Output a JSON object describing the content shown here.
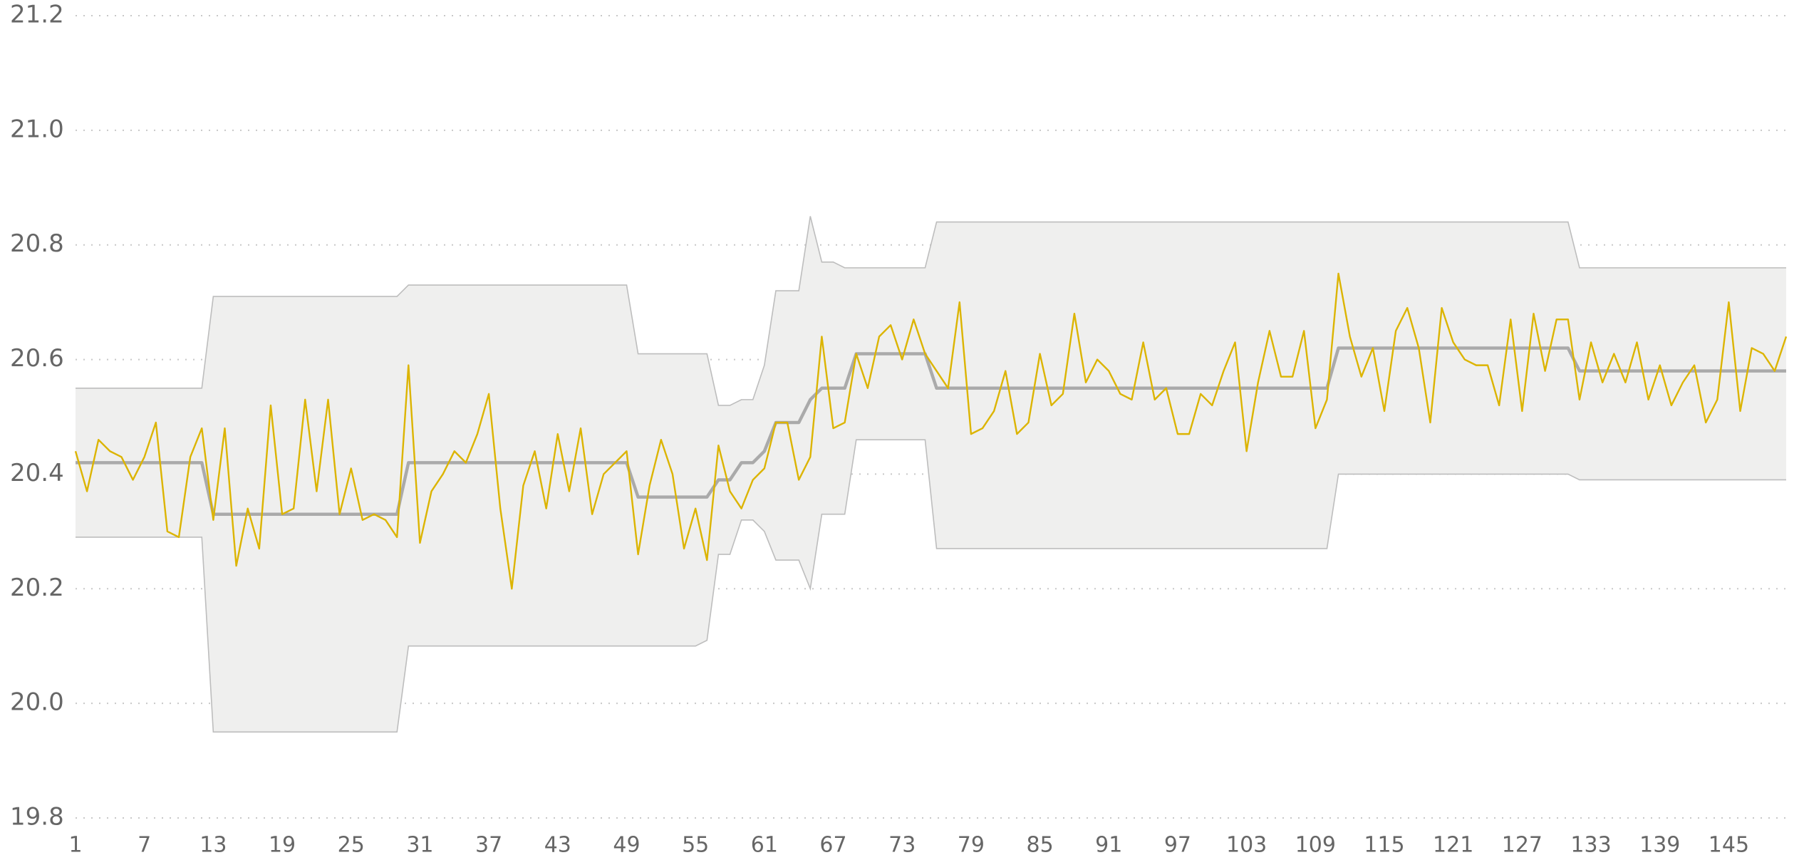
{
  "chart_data": {
    "type": "line",
    "x": [
      1,
      2,
      3,
      4,
      5,
      6,
      7,
      8,
      9,
      10,
      11,
      12,
      13,
      14,
      15,
      16,
      17,
      18,
      19,
      20,
      21,
      22,
      23,
      24,
      25,
      26,
      27,
      28,
      29,
      30,
      31,
      32,
      33,
      34,
      35,
      36,
      37,
      38,
      39,
      40,
      41,
      42,
      43,
      44,
      45,
      46,
      47,
      48,
      49,
      50,
      51,
      52,
      53,
      54,
      55,
      56,
      57,
      58,
      59,
      60,
      61,
      62,
      63,
      64,
      65,
      66,
      67,
      68,
      69,
      70,
      71,
      72,
      73,
      74,
      75,
      76,
      77,
      78,
      79,
      80,
      81,
      82,
      83,
      84,
      85,
      86,
      87,
      88,
      89,
      90,
      91,
      92,
      93,
      94,
      95,
      96,
      97,
      98,
      99,
      100,
      101,
      102,
      103,
      104,
      105,
      106,
      107,
      108,
      109,
      110,
      111,
      112,
      113,
      114,
      115,
      116,
      117,
      118,
      119,
      120,
      121,
      122,
      123,
      124,
      125,
      126,
      127,
      128,
      129,
      130,
      131,
      132,
      133,
      134,
      135,
      136,
      137,
      138,
      139,
      140,
      141,
      142,
      143,
      144,
      145,
      146,
      147,
      148,
      149,
      150
    ],
    "xlim": [
      1,
      150
    ],
    "xticks": [
      1,
      7,
      13,
      19,
      25,
      31,
      37,
      43,
      49,
      55,
      61,
      67,
      73,
      79,
      85,
      91,
      97,
      103,
      109,
      115,
      121,
      127,
      133,
      139,
      145
    ],
    "ylim": [
      19.8,
      21.2
    ],
    "yticks": [
      19.8,
      {
        "value": 20,
        "label": "20.0"
      },
      20.2,
      20.4,
      20.6,
      20.8,
      {
        "value": 21,
        "label": "21.0"
      },
      21.2
    ],
    "grid": true,
    "band": {
      "color": "#efefee",
      "edge_color": "#bdbdbd",
      "upper": [
        20.55,
        20.55,
        20.55,
        20.55,
        20.55,
        20.55,
        20.55,
        20.55,
        20.55,
        20.55,
        20.55,
        20.55,
        20.71,
        20.71,
        20.71,
        20.71,
        20.71,
        20.71,
        20.71,
        20.71,
        20.71,
        20.71,
        20.71,
        20.71,
        20.71,
        20.71,
        20.71,
        20.71,
        20.71,
        20.73,
        20.73,
        20.73,
        20.73,
        20.73,
        20.73,
        20.73,
        20.73,
        20.73,
        20.73,
        20.73,
        20.73,
        20.73,
        20.73,
        20.73,
        20.73,
        20.73,
        20.73,
        20.73,
        20.73,
        20.61,
        20.61,
        20.61,
        20.61,
        20.61,
        20.61,
        20.61,
        20.52,
        20.52,
        20.53,
        20.53,
        20.59,
        20.72,
        20.72,
        20.72,
        20.85,
        20.77,
        20.77,
        20.76,
        20.76,
        20.76,
        20.76,
        20.76,
        20.76,
        20.76,
        20.76,
        20.84,
        20.84,
        20.84,
        20.84,
        20.84,
        20.84,
        20.84,
        20.84,
        20.84,
        20.84,
        20.84,
        20.84,
        20.84,
        20.84,
        20.84,
        20.84,
        20.84,
        20.84,
        20.84,
        20.84,
        20.84,
        20.84,
        20.84,
        20.84,
        20.84,
        20.84,
        20.84,
        20.84,
        20.84,
        20.84,
        20.84,
        20.84,
        20.84,
        20.84,
        20.84,
        20.84,
        20.84,
        20.84,
        20.84,
        20.84,
        20.84,
        20.84,
        20.84,
        20.84,
        20.84,
        20.84,
        20.84,
        20.84,
        20.84,
        20.84,
        20.84,
        20.84,
        20.84,
        20.84,
        20.84,
        20.84,
        20.76,
        20.76,
        20.76,
        20.76,
        20.76,
        20.76,
        20.76,
        20.76,
        20.76,
        20.76,
        20.76,
        20.76,
        20.76,
        20.76,
        20.76,
        20.76,
        20.76,
        20.76,
        20.76
      ],
      "lower": [
        20.29,
        20.29,
        20.29,
        20.29,
        20.29,
        20.29,
        20.29,
        20.29,
        20.29,
        20.29,
        20.29,
        20.29,
        19.95,
        19.95,
        19.95,
        19.95,
        19.95,
        19.95,
        19.95,
        19.95,
        19.95,
        19.95,
        19.95,
        19.95,
        19.95,
        19.95,
        19.95,
        19.95,
        19.95,
        20.1,
        20.1,
        20.1,
        20.1,
        20.1,
        20.1,
        20.1,
        20.1,
        20.1,
        20.1,
        20.1,
        20.1,
        20.1,
        20.1,
        20.1,
        20.1,
        20.1,
        20.1,
        20.1,
        20.1,
        20.1,
        20.1,
        20.1,
        20.1,
        20.1,
        20.1,
        20.11,
        20.26,
        20.26,
        20.32,
        20.32,
        20.3,
        20.25,
        20.25,
        20.25,
        20.2,
        20.33,
        20.33,
        20.33,
        20.46,
        20.46,
        20.46,
        20.46,
        20.46,
        20.46,
        20.46,
        20.27,
        20.27,
        20.27,
        20.27,
        20.27,
        20.27,
        20.27,
        20.27,
        20.27,
        20.27,
        20.27,
        20.27,
        20.27,
        20.27,
        20.27,
        20.27,
        20.27,
        20.27,
        20.27,
        20.27,
        20.27,
        20.27,
        20.27,
        20.27,
        20.27,
        20.27,
        20.27,
        20.27,
        20.27,
        20.27,
        20.27,
        20.27,
        20.27,
        20.27,
        20.27,
        20.4,
        20.4,
        20.4,
        20.4,
        20.4,
        20.4,
        20.4,
        20.4,
        20.4,
        20.4,
        20.4,
        20.4,
        20.4,
        20.4,
        20.4,
        20.4,
        20.4,
        20.4,
        20.4,
        20.4,
        20.4,
        20.39,
        20.39,
        20.39,
        20.39,
        20.39,
        20.39,
        20.39,
        20.39,
        20.39,
        20.39,
        20.39,
        20.39,
        20.39,
        20.39,
        20.39,
        20.39,
        20.39,
        20.39,
        20.39
      ]
    },
    "series": [
      {
        "color": "#aaaaaa",
        "values": [
          20.42,
          20.42,
          20.42,
          20.42,
          20.42,
          20.42,
          20.42,
          20.42,
          20.42,
          20.42,
          20.42,
          20.42,
          20.33,
          20.33,
          20.33,
          20.33,
          20.33,
          20.33,
          20.33,
          20.33,
          20.33,
          20.33,
          20.33,
          20.33,
          20.33,
          20.33,
          20.33,
          20.33,
          20.33,
          20.42,
          20.42,
          20.42,
          20.42,
          20.42,
          20.42,
          20.42,
          20.42,
          20.42,
          20.42,
          20.42,
          20.42,
          20.42,
          20.42,
          20.42,
          20.42,
          20.42,
          20.42,
          20.42,
          20.42,
          20.36,
          20.36,
          20.36,
          20.36,
          20.36,
          20.36,
          20.36,
          20.39,
          20.39,
          20.42,
          20.42,
          20.44,
          20.49,
          20.49,
          20.49,
          20.53,
          20.55,
          20.55,
          20.55,
          20.61,
          20.61,
          20.61,
          20.61,
          20.61,
          20.61,
          20.61,
          20.55,
          20.55,
          20.55,
          20.55,
          20.55,
          20.55,
          20.55,
          20.55,
          20.55,
          20.55,
          20.55,
          20.55,
          20.55,
          20.55,
          20.55,
          20.55,
          20.55,
          20.55,
          20.55,
          20.55,
          20.55,
          20.55,
          20.55,
          20.55,
          20.55,
          20.55,
          20.55,
          20.55,
          20.55,
          20.55,
          20.55,
          20.55,
          20.55,
          20.55,
          20.55,
          20.62,
          20.62,
          20.62,
          20.62,
          20.62,
          20.62,
          20.62,
          20.62,
          20.62,
          20.62,
          20.62,
          20.62,
          20.62,
          20.62,
          20.62,
          20.62,
          20.62,
          20.62,
          20.62,
          20.62,
          20.62,
          20.58,
          20.58,
          20.58,
          20.58,
          20.58,
          20.58,
          20.58,
          20.58,
          20.58,
          20.58,
          20.58,
          20.58,
          20.58,
          20.58,
          20.58,
          20.58,
          20.58,
          20.58,
          20.58
        ]
      },
      {
        "color": "#dcb400",
        "values": [
          20.44,
          20.37,
          20.46,
          20.44,
          20.43,
          20.39,
          20.43,
          20.49,
          20.3,
          20.29,
          20.43,
          20.48,
          20.32,
          20.48,
          20.24,
          20.34,
          20.27,
          20.52,
          20.33,
          20.34,
          20.53,
          20.37,
          20.53,
          20.33,
          20.41,
          20.32,
          20.33,
          20.32,
          20.29,
          20.59,
          20.28,
          20.37,
          20.4,
          20.44,
          20.42,
          20.47,
          20.54,
          20.34,
          20.2,
          20.38,
          20.44,
          20.34,
          20.47,
          20.37,
          20.48,
          20.33,
          20.4,
          20.42,
          20.44,
          20.26,
          20.38,
          20.46,
          20.4,
          20.27,
          20.34,
          20.25,
          20.45,
          20.37,
          20.34,
          20.39,
          20.41,
          20.49,
          20.49,
          20.39,
          20.43,
          20.64,
          20.48,
          20.49,
          20.61,
          20.55,
          20.64,
          20.66,
          20.6,
          20.67,
          20.61,
          20.58,
          20.55,
          20.7,
          20.47,
          20.48,
          20.51,
          20.58,
          20.47,
          20.49,
          20.61,
          20.52,
          20.54,
          20.68,
          20.56,
          20.6,
          20.58,
          20.54,
          20.53,
          20.63,
          20.53,
          20.55,
          20.47,
          20.47,
          20.54,
          20.52,
          20.58,
          20.63,
          20.44,
          20.56,
          20.65,
          20.57,
          20.57,
          20.65,
          20.48,
          20.53,
          20.75,
          20.64,
          20.57,
          20.62,
          20.51,
          20.65,
          20.69,
          20.62,
          20.49,
          20.69,
          20.63,
          20.6,
          20.59,
          20.59,
          20.52,
          20.67,
          20.51,
          20.68,
          20.58,
          20.67,
          20.67,
          20.53,
          20.63,
          20.56,
          20.61,
          20.56,
          20.63,
          20.53,
          20.59,
          20.52,
          20.56,
          20.59,
          20.49,
          20.53,
          20.7,
          20.51,
          20.62,
          20.61,
          20.58,
          20.64
        ]
      }
    ]
  }
}
